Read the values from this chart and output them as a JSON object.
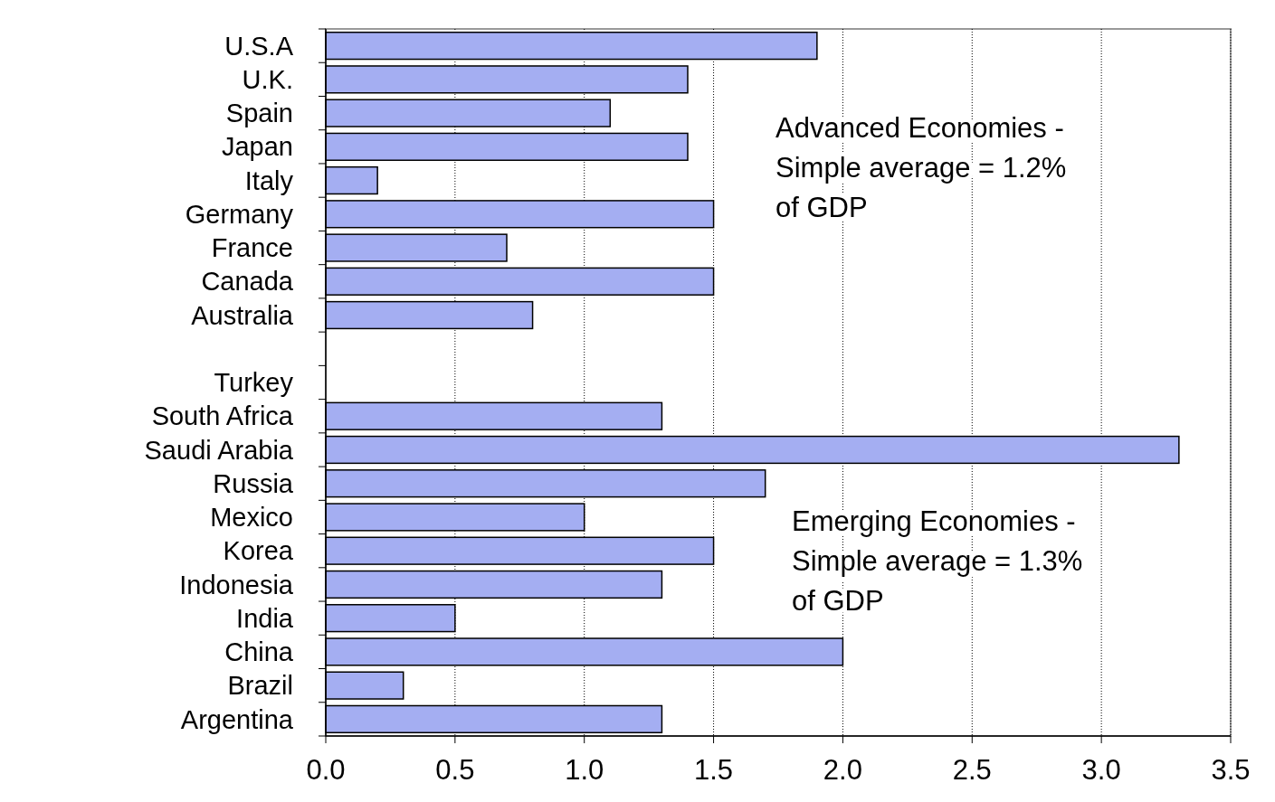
{
  "chart_data": {
    "type": "bar",
    "orientation": "horizontal",
    "categories": [
      "U.S.A",
      "U.K.",
      "Spain",
      "Japan",
      "Italy",
      "Germany",
      "France",
      "Canada",
      "Australia",
      null,
      "Turkey",
      "South Africa",
      "Saudi Arabia",
      "Russia",
      "Mexico",
      "Korea",
      "Indonesia",
      "India",
      "China",
      "Brazil",
      "Argentina"
    ],
    "values": [
      1.9,
      1.4,
      1.1,
      1.4,
      0.2,
      1.5,
      0.7,
      1.5,
      0.8,
      null,
      null,
      1.3,
      3.3,
      1.7,
      1.0,
      1.5,
      1.3,
      0.5,
      2.0,
      0.3,
      1.3
    ],
    "color": "#a4aef2",
    "xlim": [
      0,
      3.5
    ],
    "xticks": [
      {
        "value": 0,
        "label": "0.0"
      },
      {
        "value": 0.5,
        "label": "0.5"
      },
      {
        "value": 1,
        "label": "1.0"
      },
      {
        "value": 1.5,
        "label": "1.5"
      },
      {
        "value": 2,
        "label": "2.0"
      },
      {
        "value": 2.5,
        "label": "2.5"
      },
      {
        "value": 3,
        "label": "3.0"
      },
      {
        "value": 3.5,
        "label": "3.5"
      }
    ],
    "grid": "x",
    "annotations": [
      "Advanced Economies -\nSimple average = 1.2%\nof GDP",
      "Emerging Economies -\nSimple average = 1.3%\nof GDP"
    ]
  }
}
